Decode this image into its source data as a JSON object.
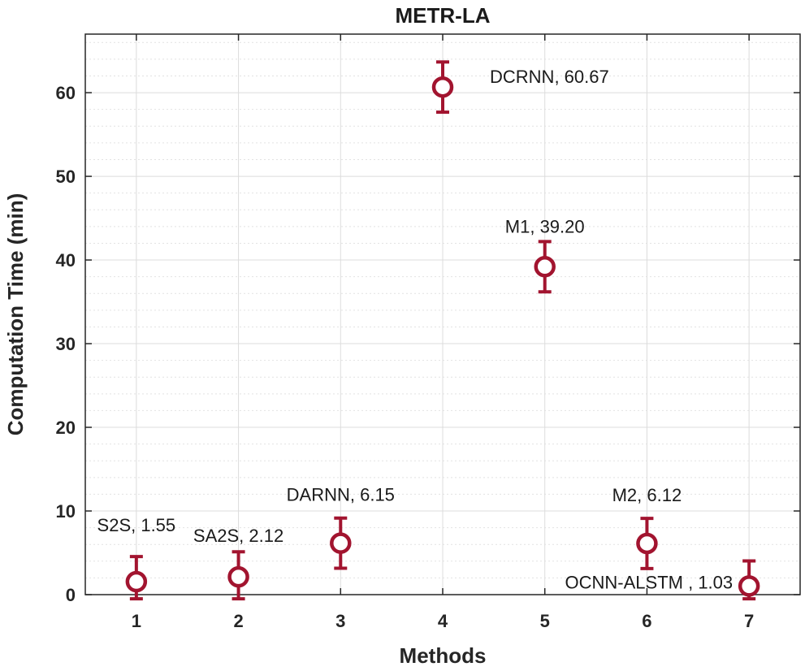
{
  "chart_data": {
    "type": "scatter",
    "title": "METR-LA",
    "xlabel": "Methods",
    "ylabel": "Computation Time (min)",
    "xlim": [
      0.5,
      7.5
    ],
    "ylim": [
      0,
      67
    ],
    "xticks": [
      1,
      2,
      3,
      4,
      5,
      6,
      7
    ],
    "yticks": [
      0,
      10,
      20,
      30,
      40,
      50,
      60
    ],
    "grid": true,
    "minor_grid": true,
    "marker_color": "#A2142F",
    "marker": "circle-with-errorbar",
    "points": [
      {
        "x": 1,
        "y": 1.55,
        "err": 3,
        "label": "S2S, 1.55"
      },
      {
        "x": 2,
        "y": 2.12,
        "err": 3,
        "label": "SA2S, 2.12"
      },
      {
        "x": 3,
        "y": 6.15,
        "err": 3,
        "label": "DARNN, 6.15"
      },
      {
        "x": 4,
        "y": 60.67,
        "err": 3,
        "label": "DCRNN, 60.67"
      },
      {
        "x": 5,
        "y": 39.2,
        "err": 3,
        "label": "M1, 39.20"
      },
      {
        "x": 6,
        "y": 6.12,
        "err": 3,
        "label": "M2, 6.12"
      },
      {
        "x": 7,
        "y": 1.03,
        "err": 3,
        "label": "OCNN-ALSTM , 1.03"
      }
    ]
  }
}
